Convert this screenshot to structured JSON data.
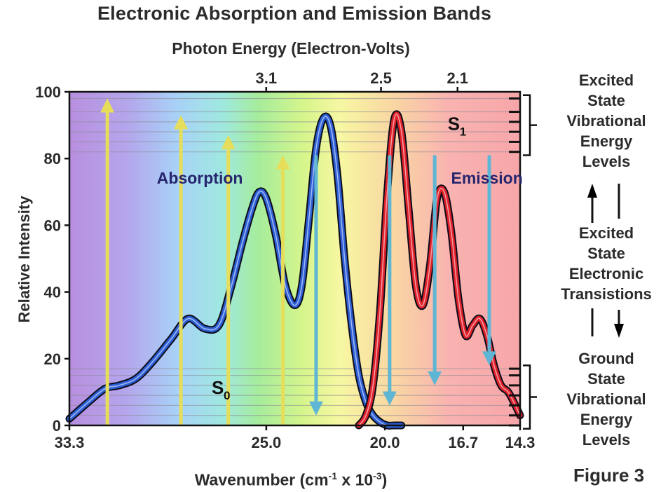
{
  "title": "Electronic Absorption and Emission Bands",
  "figure_label": "Figure 3",
  "side_labels": {
    "excited_levels": "Excited\nState\nVibrational\nEnergy\nLevels",
    "transitions": "Excited\nState\nElectronic\nTransistions",
    "ground_levels": "Ground\nState\nVibrational\nEnergy\nLevels"
  },
  "chart_data": {
    "type": "line",
    "title": "Electronic Absorption and Emission Bands",
    "xlabel": "Wavenumber (cm-1 x 10-3)",
    "ylabel": "Relative Intensity",
    "top_axis_label": "Photon Energy (Electron-Volts)",
    "x_range": [
      33.3,
      14.3
    ],
    "ylim": [
      0,
      100
    ],
    "x_ticks": [
      "33.3",
      "25.0",
      "20.0",
      "16.7",
      "14.3"
    ],
    "y_ticks": [
      "0",
      "20",
      "40",
      "60",
      "80",
      "100"
    ],
    "top_ticks": [
      "3.1",
      "2.5",
      "2.1"
    ],
    "series": [
      {
        "name": "Absorption",
        "color": "#2d5fd6",
        "x": [
          33.3,
          32.5,
          31.8,
          31.2,
          30.5,
          29.8,
          29.0,
          28.3,
          27.6,
          27.0,
          26.5,
          26.0,
          25.6,
          25.3,
          25.0,
          24.6,
          24.2,
          23.8,
          23.5,
          23.2,
          22.9,
          22.6,
          22.3,
          22.0,
          21.7,
          21.4,
          21.1,
          20.8,
          20.5,
          20.2,
          19.9,
          19.6,
          19.3
        ],
        "y": [
          2,
          7,
          11,
          12,
          14,
          19,
          26,
          32,
          29,
          30,
          41,
          55,
          65,
          70,
          68,
          57,
          42,
          36,
          42,
          62,
          83,
          92,
          90,
          75,
          50,
          30,
          15,
          7,
          3,
          1,
          0,
          0,
          0
        ]
      },
      {
        "name": "Emission",
        "color": "#e0202a",
        "x": [
          21.1,
          20.8,
          20.5,
          20.2,
          19.9,
          19.6,
          19.3,
          19.0,
          18.7,
          18.4,
          18.1,
          17.8,
          17.5,
          17.2,
          16.9,
          16.6,
          16.3,
          16.0,
          15.7,
          15.4,
          15.1,
          14.8,
          14.5,
          14.3
        ],
        "y": [
          0,
          3,
          12,
          35,
          70,
          92,
          88,
          65,
          42,
          36,
          48,
          68,
          70,
          58,
          38,
          27,
          30,
          32,
          27,
          18,
          12,
          10,
          6,
          3
        ]
      }
    ],
    "transitions": {
      "absorption": [
        {
          "x": 31.7,
          "from": 0,
          "to": 98
        },
        {
          "x": 28.6,
          "from": 0,
          "to": 93
        },
        {
          "x": 26.6,
          "from": 0,
          "to": 87
        },
        {
          "x": 24.3,
          "from": 0,
          "to": 81
        }
      ],
      "emission": [
        {
          "x": 22.9,
          "from": 81,
          "to": 3
        },
        {
          "x": 19.8,
          "from": 81,
          "to": 6
        },
        {
          "x": 17.9,
          "from": 81,
          "to": 12
        },
        {
          "x": 15.6,
          "from": 81,
          "to": 18
        }
      ]
    },
    "energy_levels": {
      "s1": [
        82,
        85,
        88,
        91,
        94,
        98
      ],
      "s0": [
        0,
        3,
        6,
        9,
        12,
        15,
        17
      ]
    },
    "annotations": {
      "absorption": "Absorption",
      "emission": "Emission",
      "s0": "S",
      "s0_sub": "0",
      "s1": "S",
      "s1_sub": "1"
    },
    "grid": false
  }
}
